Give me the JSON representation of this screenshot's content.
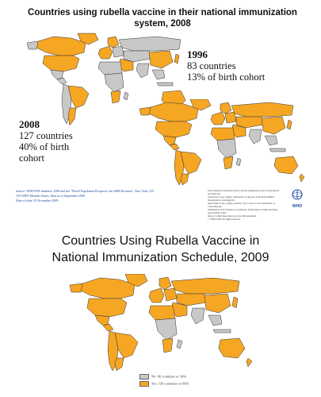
{
  "colors": {
    "uses_vaccine": "#f5a623",
    "no_vaccine": "#c8c8c8",
    "border": "#333333",
    "who_blue": "#1a4aa0"
  },
  "panel1": {
    "title_line1": "Countries using rubella vaccine in their national immunization",
    "title_line2": "system, 2008",
    "stat1996": {
      "year": "1996",
      "countries": "83 countries",
      "cohort": "13% of birth cohort"
    },
    "stat2008": {
      "year": "2008",
      "countries": "127 countries",
      "cohort_line1": "40% of birth",
      "cohort_line2": "cohort"
    },
    "source_line1": "Source: WHO/IVB database, 2009 and the \"World Population Prospects: the 2008 Revision\", New York, UN",
    "source_line2": "193 WHO Member States. Data as of September 2009",
    "source_line3": "Date of slide: 03 November 2009",
    "disclaimer_line1": "The boundaries and names shown and the designations used on this map do not imply the",
    "disclaimer_line2": "expression of any opinion whatsoever on the part of the World Health Organization concerning the",
    "disclaimer_line3": "legal status of any country, territory, city or area or of its authorities, or concerning the",
    "disclaimer_line4": "delimitation of its frontiers or boundaries. Dotted lines on maps represent approximate border",
    "disclaimer_line5": "lines for which there may not yet be full agreement.",
    "disclaimer_line6": "© WHO 2009. All rights reserved.",
    "who_label": "WHO"
  },
  "panel2": {
    "title_line1": "Countries Using Rubella Vaccine in",
    "title_line2": "National Immunization Schedule, 2009",
    "legend": [
      {
        "label": "No. 66 countries or 34%",
        "color": "#c8c8c8"
      },
      {
        "label": "Yes. 130 countries or 66%",
        "color": "#f5a623"
      }
    ]
  }
}
